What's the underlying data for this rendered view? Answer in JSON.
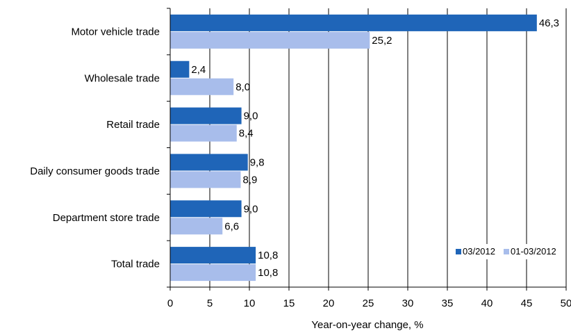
{
  "chart_data": {
    "type": "bar",
    "orientation": "horizontal",
    "categories": [
      "Motor vehicle trade",
      "Wholesale trade",
      "Retail trade",
      "Daily consumer goods trade",
      "Department store trade",
      "Total trade"
    ],
    "series": [
      {
        "name": "03/2012",
        "color": "#1f65b8",
        "values": [
          46.3,
          2.4,
          9.0,
          9.8,
          9.0,
          10.8
        ],
        "labels": [
          "46,3",
          "2,4",
          "9,0",
          "9,8",
          "9,0",
          "10,8"
        ]
      },
      {
        "name": "01-03/2012",
        "color": "#a8bdeb",
        "values": [
          25.2,
          8.0,
          8.4,
          8.9,
          6.6,
          10.8
        ],
        "labels": [
          "25,2",
          "8,0",
          "8,4",
          "8,9",
          "6,6",
          "10,8"
        ]
      }
    ],
    "xlabel": "Year-on-year change, %",
    "xlim": [
      0,
      50
    ],
    "xticks": [
      0,
      5,
      10,
      15,
      20,
      25,
      30,
      35,
      40,
      45,
      50
    ],
    "grid": true,
    "legend": "bottom-right"
  }
}
